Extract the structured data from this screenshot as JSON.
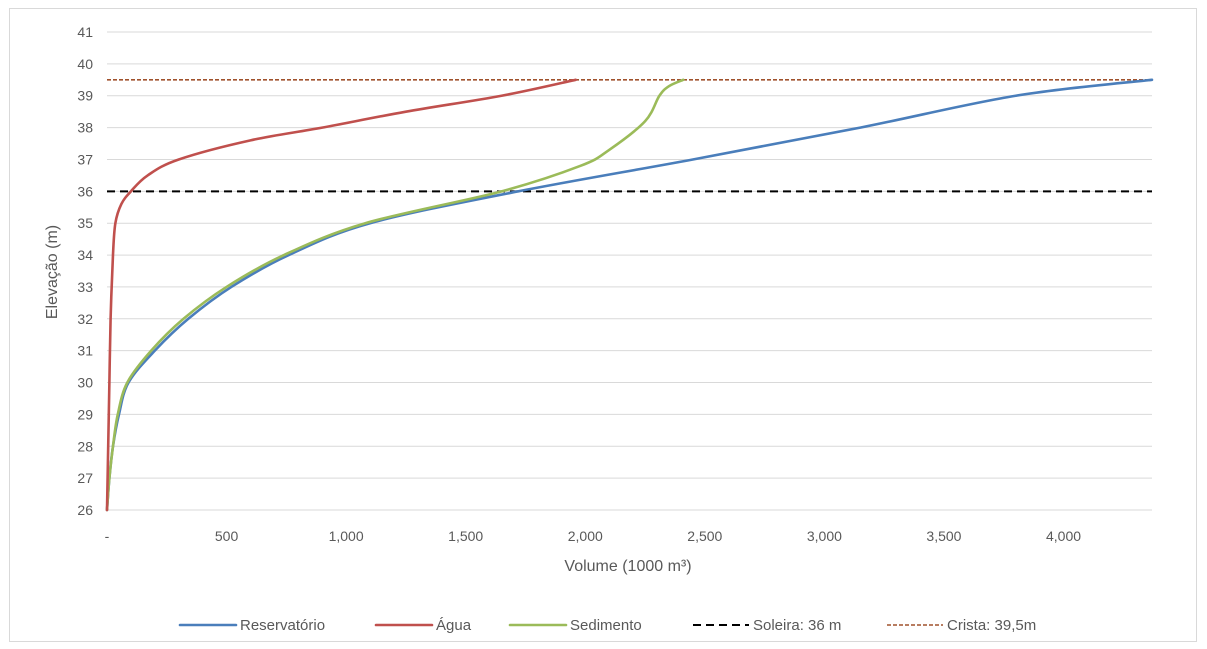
{
  "chart_data": {
    "type": "line",
    "xlabel": "Volume (1000 m³)",
    "ylabel": "Elevação (m)",
    "xlim": [
      0,
      4370
    ],
    "ylim": [
      26,
      41
    ],
    "x_ticks": [
      0,
      500,
      1000,
      1500,
      2000,
      2500,
      3000,
      3500,
      4000
    ],
    "x_tick_labels": [
      "-",
      "500",
      "1,000",
      "1,500",
      "2,000",
      "2,500",
      "3,000",
      "3,500",
      "4,000"
    ],
    "y_ticks": [
      26,
      27,
      28,
      29,
      30,
      31,
      32,
      33,
      34,
      35,
      36,
      37,
      38,
      39,
      40,
      41
    ],
    "y_tick_labels": [
      "26",
      "27",
      "28",
      "29",
      "30",
      "31",
      "32",
      "33",
      "34",
      "35",
      "36",
      "37",
      "38",
      "39",
      "40",
      "41"
    ],
    "grid": true,
    "legend_position": "bottom",
    "series": [
      {
        "name": "Reservatório",
        "color": "#4a7ebb",
        "style": "solid",
        "points": [
          [
            0,
            26
          ],
          [
            10,
            27
          ],
          [
            25,
            28
          ],
          [
            50,
            29
          ],
          [
            90,
            30
          ],
          [
            200,
            31
          ],
          [
            340,
            32
          ],
          [
            520,
            33
          ],
          [
            760,
            34
          ],
          [
            1100,
            35
          ],
          [
            1720,
            36
          ],
          [
            2450,
            37
          ],
          [
            3150,
            38
          ],
          [
            3800,
            39
          ],
          [
            4370,
            39.5
          ]
        ]
      },
      {
        "name": "Água",
        "color": "#c0504d",
        "style": "solid",
        "points": [
          [
            0,
            26
          ],
          [
            5,
            28
          ],
          [
            10,
            30
          ],
          [
            15,
            32
          ],
          [
            25,
            34
          ],
          [
            35,
            35
          ],
          [
            60,
            35.6
          ],
          [
            100,
            36
          ],
          [
            170,
            36.5
          ],
          [
            300,
            37
          ],
          [
            600,
            37.6
          ],
          [
            900,
            38
          ],
          [
            1250,
            38.5
          ],
          [
            1650,
            39
          ],
          [
            1960,
            39.5
          ]
        ]
      },
      {
        "name": "Sedimento",
        "color": "#9bbb59",
        "style": "solid",
        "points": [
          [
            0,
            26
          ],
          [
            10,
            27
          ],
          [
            25,
            28
          ],
          [
            45,
            29
          ],
          [
            85,
            30
          ],
          [
            185,
            31
          ],
          [
            320,
            32
          ],
          [
            500,
            33
          ],
          [
            740,
            34
          ],
          [
            1080,
            35
          ],
          [
            1650,
            36
          ],
          [
            1980,
            36.8
          ],
          [
            2100,
            37.3
          ],
          [
            2250,
            38.2
          ],
          [
            2310,
            39
          ],
          [
            2350,
            39.3
          ],
          [
            2410,
            39.5
          ]
        ]
      },
      {
        "name": "Soleira: 36 m",
        "color": "#000000",
        "style": "dashed",
        "points": [
          [
            0,
            36
          ],
          [
            4370,
            36
          ]
        ]
      },
      {
        "name": "Crista: 39,5m",
        "color": "#a0522d",
        "style": "dotted",
        "points": [
          [
            0,
            39.5
          ],
          [
            4370,
            39.5
          ]
        ]
      }
    ]
  }
}
